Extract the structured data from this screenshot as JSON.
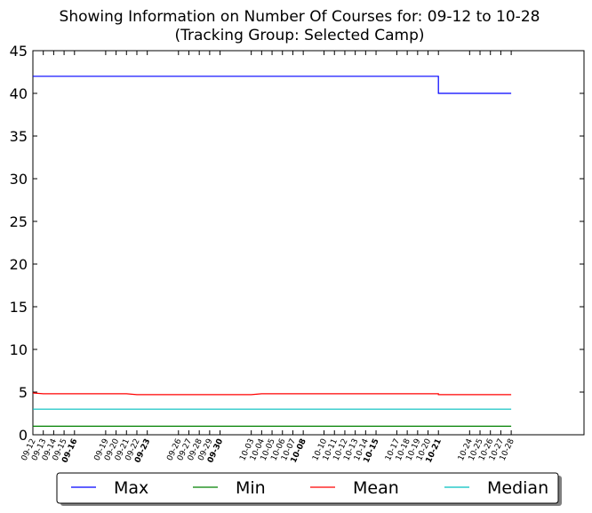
{
  "chart_data": {
    "type": "line",
    "title": "Showing Information on Number Of Courses for: 09-12 to 10-28",
    "subtitle": "(Tracking Group: Selected Camp)",
    "xlabel": "",
    "ylabel": "",
    "ylim": [
      0,
      45
    ],
    "yticks": [
      0,
      5,
      10,
      15,
      20,
      25,
      30,
      35,
      40,
      45
    ],
    "x_range": [
      "09-12",
      "11-04"
    ],
    "x_ticks": [
      {
        "label": "09-12",
        "bold": false
      },
      {
        "label": "09-13",
        "bold": false
      },
      {
        "label": "09-14",
        "bold": false
      },
      {
        "label": "09-15",
        "bold": false
      },
      {
        "label": "09-16",
        "bold": true
      },
      {
        "label": "09-19",
        "bold": false
      },
      {
        "label": "09-20",
        "bold": false
      },
      {
        "label": "09-21",
        "bold": false
      },
      {
        "label": "09-22",
        "bold": false
      },
      {
        "label": "09-23",
        "bold": true
      },
      {
        "label": "09-26",
        "bold": false
      },
      {
        "label": "09-27",
        "bold": false
      },
      {
        "label": "09-28",
        "bold": false
      },
      {
        "label": "09-29",
        "bold": false
      },
      {
        "label": "09-30",
        "bold": true
      },
      {
        "label": "10-03",
        "bold": false
      },
      {
        "label": "10-04",
        "bold": false
      },
      {
        "label": "10-05",
        "bold": false
      },
      {
        "label": "10-06",
        "bold": false
      },
      {
        "label": "10-07",
        "bold": false
      },
      {
        "label": "10-08",
        "bold": true
      },
      {
        "label": "10-10",
        "bold": false
      },
      {
        "label": "10-11",
        "bold": false
      },
      {
        "label": "10-12",
        "bold": false
      },
      {
        "label": "10-13",
        "bold": false
      },
      {
        "label": "10-14",
        "bold": false
      },
      {
        "label": "10-15",
        "bold": true
      },
      {
        "label": "10-17",
        "bold": false
      },
      {
        "label": "10-18",
        "bold": false
      },
      {
        "label": "10-19",
        "bold": false
      },
      {
        "label": "10-20",
        "bold": false
      },
      {
        "label": "10-21",
        "bold": true
      },
      {
        "label": "10-24",
        "bold": false
      },
      {
        "label": "10-25",
        "bold": false
      },
      {
        "label": "10-26",
        "bold": false
      },
      {
        "label": "10-27",
        "bold": false
      },
      {
        "label": "10-28",
        "bold": false
      }
    ],
    "grid": false,
    "legend_position": "bottom",
    "series": [
      {
        "name": "Max",
        "color": "#0000ff",
        "step": true,
        "points": [
          [
            "09-12",
            42
          ],
          [
            "10-21",
            42
          ],
          [
            "10-21",
            40
          ],
          [
            "10-28",
            40
          ]
        ]
      },
      {
        "name": "Min",
        "color": "#008000",
        "step": false,
        "points": [
          [
            "09-12",
            1
          ],
          [
            "10-28",
            1
          ]
        ]
      },
      {
        "name": "Mean",
        "color": "#ff0000",
        "step": false,
        "points": [
          [
            "09-12",
            4.9
          ],
          [
            "09-13",
            4.8
          ],
          [
            "09-21",
            4.8
          ],
          [
            "09-22",
            4.7
          ],
          [
            "10-03",
            4.7
          ],
          [
            "10-04",
            4.8
          ],
          [
            "10-21",
            4.8
          ],
          [
            "10-21",
            4.7
          ],
          [
            "10-28",
            4.7
          ]
        ]
      },
      {
        "name": "Median",
        "color": "#00bfbf",
        "step": false,
        "points": [
          [
            "09-12",
            3
          ],
          [
            "10-28",
            3
          ]
        ]
      }
    ]
  }
}
